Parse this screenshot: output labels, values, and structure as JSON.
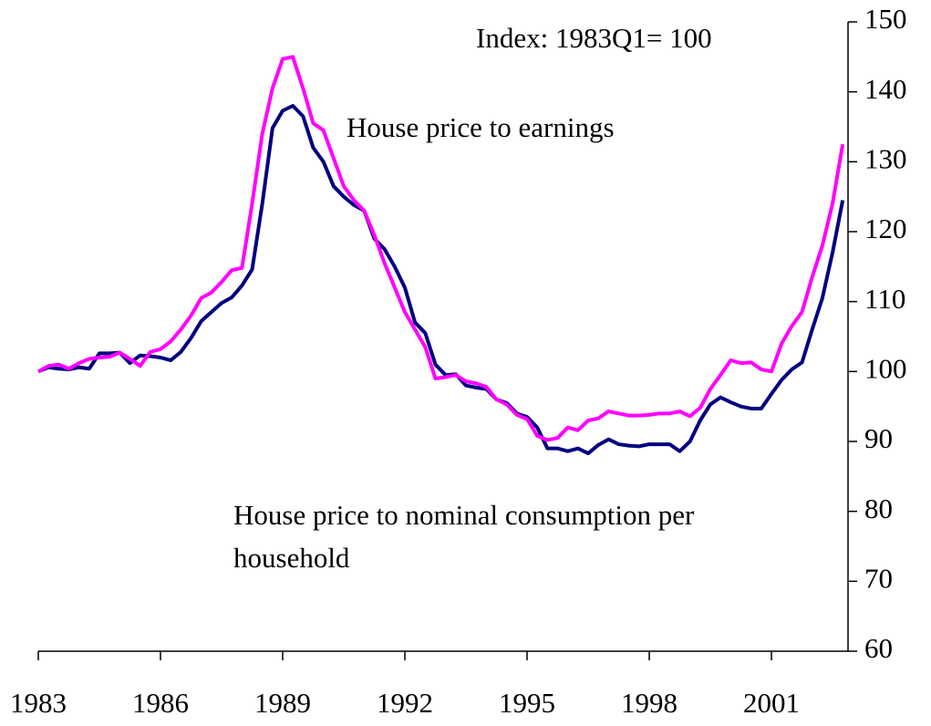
{
  "chart_data": {
    "type": "line",
    "annotations": [
      "Index: 1983Q1= 100",
      "House price to earnings",
      "House price to nominal consumption per",
      "household"
    ],
    "x": [
      1983,
      1983.25,
      1983.5,
      1983.75,
      1984,
      1984.25,
      1984.5,
      1984.75,
      1985,
      1985.25,
      1985.5,
      1985.75,
      1986,
      1986.25,
      1986.5,
      1986.75,
      1987,
      1987.25,
      1987.5,
      1987.75,
      1988,
      1988.25,
      1988.5,
      1988.75,
      1989,
      1989.25,
      1989.5,
      1989.75,
      1990,
      1990.25,
      1990.5,
      1990.75,
      1991,
      1991.25,
      1991.5,
      1991.75,
      1992,
      1992.25,
      1992.5,
      1992.75,
      1993,
      1993.25,
      1993.5,
      1993.75,
      1994,
      1994.25,
      1994.5,
      1994.75,
      1995,
      1995.25,
      1995.5,
      1995.75,
      1996,
      1996.25,
      1996.5,
      1996.75,
      1997,
      1997.25,
      1997.5,
      1997.75,
      1998,
      1998.25,
      1998.5,
      1998.75,
      1999,
      1999.25,
      1999.5,
      1999.75,
      2000,
      2000.25,
      2000.5,
      2000.75,
      2001,
      2001.25,
      2001.5,
      2001.75,
      2002,
      2002.25,
      2002.5,
      2002.75
    ],
    "series": [
      {
        "color": "#000080",
        "values": [
          100,
          100.6,
          100.4,
          100.3,
          100.6,
          100.4,
          102.6,
          102.6,
          102.7,
          101.2,
          102.3,
          102.2,
          102,
          101.6,
          102.8,
          104.8,
          107.2,
          108.5,
          109.8,
          110.6,
          112.3,
          114.6,
          124,
          134.8,
          137.3,
          138,
          136.5,
          132,
          130,
          126.5,
          125,
          123.8,
          123,
          119,
          117.5,
          115,
          112,
          107,
          105.5,
          101,
          99.5,
          99.6,
          98,
          97.7,
          97.5,
          96,
          95.5,
          94,
          93.5,
          92,
          89,
          89,
          88.6,
          89,
          88.3,
          89.5,
          90.3,
          89.6,
          89.4,
          89.3,
          89.6,
          89.6,
          89.6,
          88.6,
          90,
          93,
          95.3,
          96.3,
          95.6,
          95,
          94.7,
          94.7,
          96.8,
          98.8,
          100.3,
          101.3,
          106,
          110.5,
          117,
          124.5
        ]
      },
      {
        "color": "#ff00ff",
        "values": [
          100,
          100.8,
          101,
          100.4,
          101.2,
          101.8,
          102,
          102.1,
          102.7,
          101.8,
          100.8,
          102.8,
          103.2,
          104.3,
          106,
          108,
          110.5,
          111.3,
          112.8,
          114.5,
          114.8,
          124,
          134,
          140.5,
          144.7,
          145,
          140.5,
          135.5,
          134.5,
          130.5,
          126.5,
          124.5,
          123,
          119.5,
          115.5,
          112,
          108.5,
          106,
          103.5,
          99,
          99.2,
          99.5,
          98.6,
          98.3,
          97.8,
          96,
          95.3,
          93.8,
          93.2,
          90.8,
          90.2,
          90.5,
          92,
          91.6,
          93,
          93.3,
          94.3,
          94,
          93.7,
          93.7,
          93.8,
          94,
          94,
          94.3,
          93.6,
          94.8,
          97.5,
          99.5,
          101.6,
          101.2,
          101.3,
          100.3,
          100,
          104,
          106.5,
          108.5,
          113.5,
          118,
          124,
          132.5
        ]
      }
    ],
    "xlim": [
      1983,
      2002.88
    ],
    "xticks": [
      1983,
      1986,
      1989,
      1992,
      1995,
      1998,
      2001
    ],
    "ylim": [
      60,
      150
    ],
    "yticks": [
      60,
      70,
      80,
      90,
      100,
      110,
      120,
      130,
      140,
      150
    ],
    "grid": false
  }
}
